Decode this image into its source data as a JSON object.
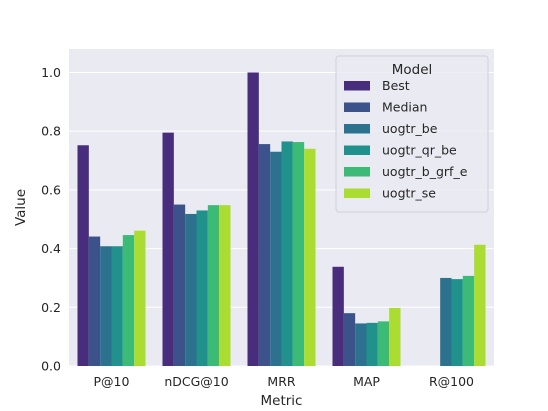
{
  "chart_data": {
    "type": "bar",
    "title": "",
    "xlabel": "Metric",
    "ylabel": "Value",
    "ylim": [
      0,
      1.08
    ],
    "yticks": [
      "0.0",
      "0.2",
      "0.4",
      "0.6",
      "0.8",
      "1.0"
    ],
    "ytick_values": [
      0.0,
      0.2,
      0.4,
      0.6,
      0.8,
      1.0
    ],
    "grid": true,
    "legend_title": "Model",
    "legend_position": "upper-right",
    "categories": [
      "P@10",
      "nDCG@10",
      "MRR",
      "MAP",
      "R@100"
    ],
    "series": [
      {
        "name": "Best",
        "color": "#472d7b",
        "values": [
          0.752,
          0.795,
          1.0,
          0.338,
          null
        ]
      },
      {
        "name": "Median",
        "color": "#3b528b",
        "values": [
          0.441,
          0.55,
          0.756,
          0.18,
          null
        ]
      },
      {
        "name": "uogtr_be",
        "color": "#2c728e",
        "values": [
          0.408,
          0.518,
          0.73,
          0.145,
          0.3
        ]
      },
      {
        "name": "uogtr_qr_be",
        "color": "#21918c",
        "values": [
          0.408,
          0.53,
          0.765,
          0.147,
          0.296
        ]
      },
      {
        "name": "uogtr_b_grf_e",
        "color": "#3bbb75",
        "values": [
          0.446,
          0.548,
          0.763,
          0.152,
          0.307
        ]
      },
      {
        "name": "uogtr_se",
        "color": "#aadc32",
        "values": [
          0.461,
          0.548,
          0.74,
          0.198,
          0.413
        ]
      }
    ],
    "background_color": "#eaeaf2",
    "grid_color": "#ffffff"
  }
}
